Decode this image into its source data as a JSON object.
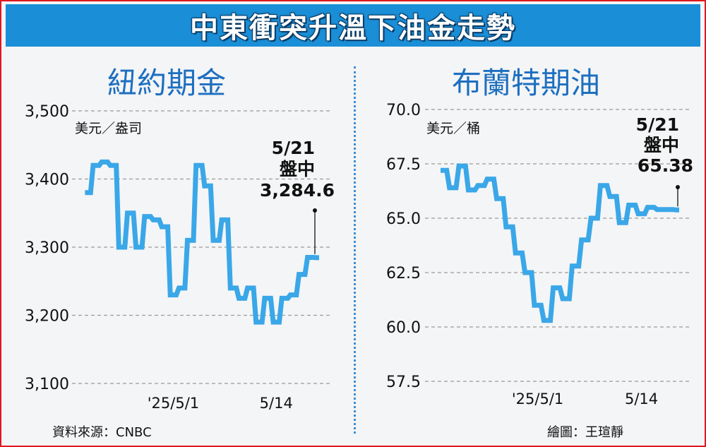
{
  "title": "中東衝突升溫下油金走勢",
  "source": "資料來源：CNBC",
  "credit": "繪圖：王瑄靜",
  "colors": {
    "line": "#3aa7e8",
    "accent": "#1a8fd7",
    "border": "#e0191e"
  },
  "chart_data": [
    {
      "type": "line",
      "title": "紐約期金",
      "unit": "美元／盎司",
      "ylim": [
        3100,
        3500
      ],
      "yticks": [
        "3,500",
        "3,400",
        "3,300",
        "3,200",
        "3,100"
      ],
      "ytick_values": [
        3500,
        3400,
        3300,
        3200,
        3100
      ],
      "xticks": [
        {
          "index": 10,
          "label": "'25/5/1"
        },
        {
          "index": 22,
          "label": "5/14"
        }
      ],
      "n": 28,
      "series": [
        {
          "values": [
            3380,
            3420,
            3425,
            3420,
            3300,
            3350,
            3300,
            3345,
            3340,
            3330,
            3230,
            3240,
            3310,
            3420,
            3390,
            3310,
            3340,
            3240,
            3225,
            3240,
            3190,
            3225,
            3190,
            3225,
            3230,
            3260,
            3285,
            3284.6
          ]
        }
      ],
      "annotation": {
        "date": "5/21",
        "note": "盤中",
        "value": "3,284.6"
      }
    },
    {
      "type": "line",
      "title": "布蘭特期油",
      "unit": "美元／桶",
      "ylim": [
        57.5,
        70.0
      ],
      "yticks": [
        "70.0",
        "67.5",
        "65.0",
        "62.5",
        "60.0",
        "57.5"
      ],
      "ytick_values": [
        70.0,
        67.5,
        65.0,
        62.5,
        60.0,
        57.5
      ],
      "xticks": [
        {
          "index": 10,
          "label": "'25/5/1"
        },
        {
          "index": 21,
          "label": "5/14"
        }
      ],
      "n": 26,
      "series": [
        {
          "values": [
            67.2,
            66.4,
            67.4,
            66.3,
            66.5,
            66.8,
            65.9,
            64.6,
            63.4,
            62.5,
            61.0,
            60.3,
            61.8,
            61.3,
            62.8,
            64.0,
            65.0,
            66.5,
            66.0,
            64.8,
            65.6,
            65.2,
            65.5,
            65.4,
            65.4,
            65.38
          ]
        }
      ],
      "annotation": {
        "date": "5/21",
        "note": "盤中",
        "value": "65.38"
      }
    }
  ]
}
